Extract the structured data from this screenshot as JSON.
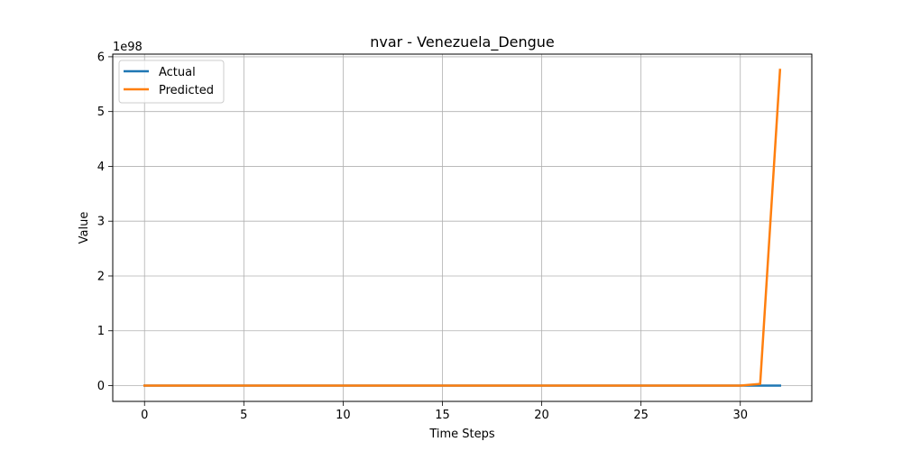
{
  "chart_data": {
    "type": "line",
    "title": "nvar - Venezuela_Dengue",
    "xlabel": "Time Steps",
    "ylabel": "Value",
    "y_offset_label": "1e98",
    "xlim": [
      -1.6,
      33.6
    ],
    "ylim": [
      -0.288,
      6.048
    ],
    "y_scale_exponent": 98,
    "x_ticks": [
      0,
      5,
      10,
      15,
      20,
      25,
      30
    ],
    "y_ticks": [
      0,
      1,
      2,
      3,
      4,
      5,
      6
    ],
    "grid": true,
    "legend_position": "upper-left",
    "x": [
      0,
      1,
      2,
      3,
      4,
      5,
      6,
      7,
      8,
      9,
      10,
      11,
      12,
      13,
      14,
      15,
      16,
      17,
      18,
      19,
      20,
      21,
      22,
      23,
      24,
      25,
      26,
      27,
      28,
      29,
      30,
      31,
      32
    ],
    "series": [
      {
        "name": "Actual",
        "color": "#1f77b4",
        "values": [
          0,
          0,
          0,
          0,
          0,
          0,
          0,
          0,
          0,
          0,
          0,
          0,
          0,
          0,
          0,
          0,
          0,
          0,
          0,
          0,
          0,
          0,
          0,
          0,
          0,
          0,
          0,
          0,
          0,
          0,
          0,
          0,
          0
        ]
      },
      {
        "name": "Predicted",
        "color": "#ff7f0e",
        "values": [
          0,
          0,
          0,
          0,
          0,
          0,
          0,
          0,
          0,
          0,
          0,
          0,
          0,
          0,
          0,
          0,
          0,
          0,
          0,
          0,
          0,
          0,
          0,
          0,
          0,
          0,
          0,
          0,
          0,
          0,
          0,
          0.03,
          5.76
        ]
      }
    ]
  }
}
